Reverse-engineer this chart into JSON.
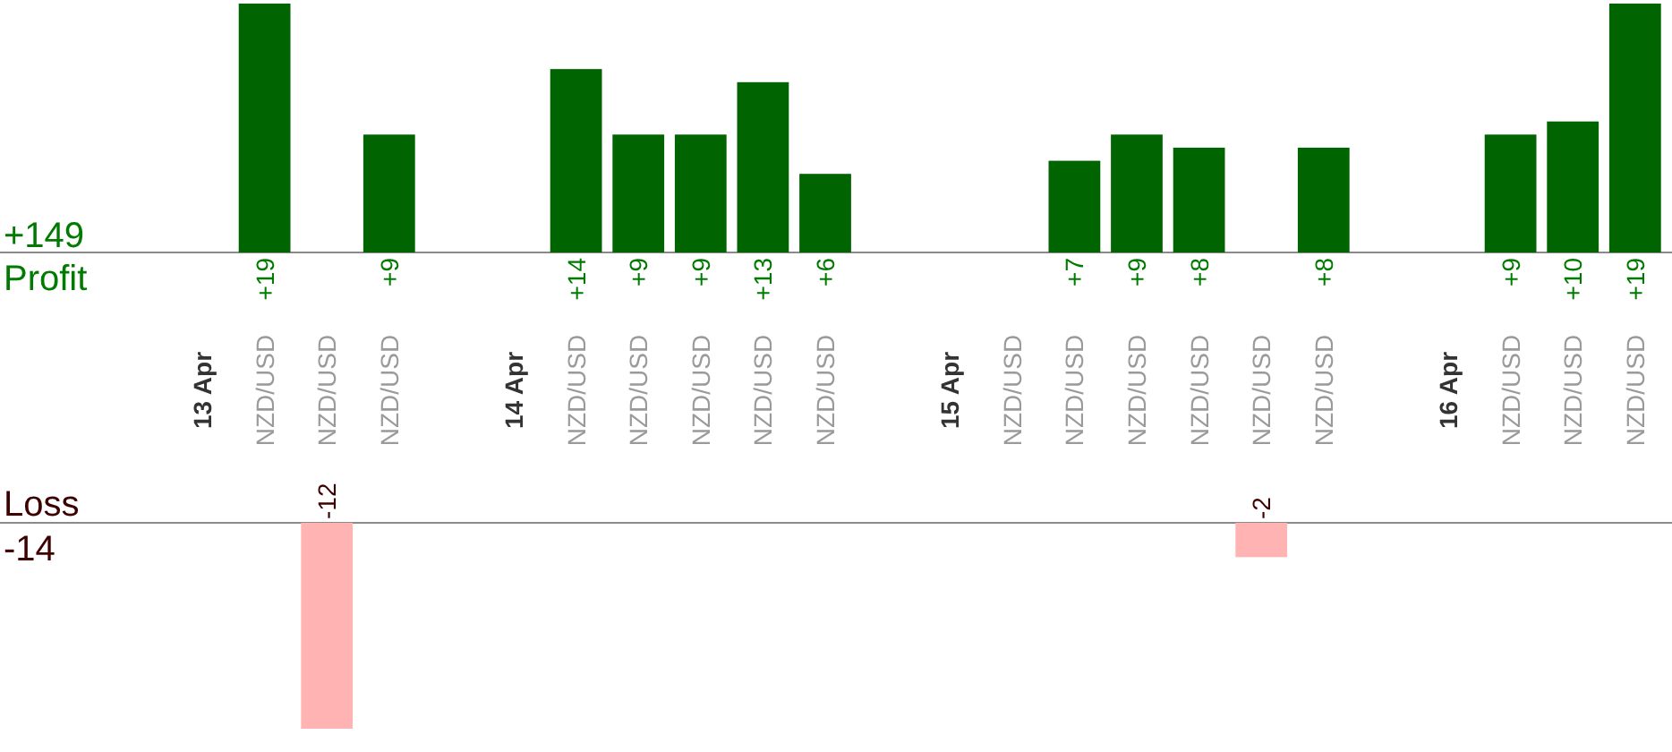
{
  "chart_data": [
    {
      "type": "bar",
      "ylabel": "Profit",
      "annotations": [
        "+149"
      ],
      "categories": [
        "13 Apr",
        "NZD/USD",
        "NZD/USD",
        "NZD/USD",
        null,
        "14 Apr",
        "NZD/USD",
        "NZD/USD",
        "NZD/USD",
        "NZD/USD",
        "NZD/USD",
        null,
        "15 Apr",
        "NZD/USD",
        "NZD/USD",
        "NZD/USD",
        "NZD/USD",
        "NZD/USD",
        "NZD/USD",
        null,
        "16 Apr",
        "NZD/USD",
        "NZD/USD",
        "NZD/USD"
      ],
      "values": [
        null,
        19,
        null,
        9,
        null,
        null,
        14,
        9,
        9,
        13,
        6,
        null,
        null,
        null,
        7,
        9,
        8,
        null,
        8,
        null,
        null,
        9,
        10,
        19
      ],
      "value_labels": [
        null,
        "+19",
        null,
        "+9",
        null,
        null,
        "+14",
        "+9",
        "+9",
        "+13",
        "+6",
        null,
        null,
        null,
        "+7",
        "+9",
        "+8",
        null,
        "+8",
        null,
        null,
        "+9",
        "+10",
        "+19"
      ],
      "color": "#006400"
    },
    {
      "type": "bar",
      "ylabel": "Loss",
      "annotations": [
        "-14"
      ],
      "categories": [
        null,
        null,
        null,
        null,
        null,
        null,
        null,
        null,
        null,
        null,
        null,
        null,
        null,
        null,
        null,
        null,
        null,
        null,
        null,
        null,
        null,
        null,
        null,
        null
      ],
      "values": [
        null,
        null,
        -12,
        null,
        null,
        null,
        null,
        null,
        null,
        null,
        null,
        null,
        null,
        null,
        null,
        null,
        null,
        -2,
        null,
        null,
        null,
        null,
        null,
        null
      ],
      "value_labels": [
        null,
        null,
        "-12",
        null,
        null,
        null,
        null,
        null,
        null,
        null,
        null,
        null,
        null,
        null,
        null,
        null,
        null,
        "-2",
        null,
        null,
        null,
        null,
        null,
        null
      ],
      "color": "#ffb3b3"
    }
  ]
}
